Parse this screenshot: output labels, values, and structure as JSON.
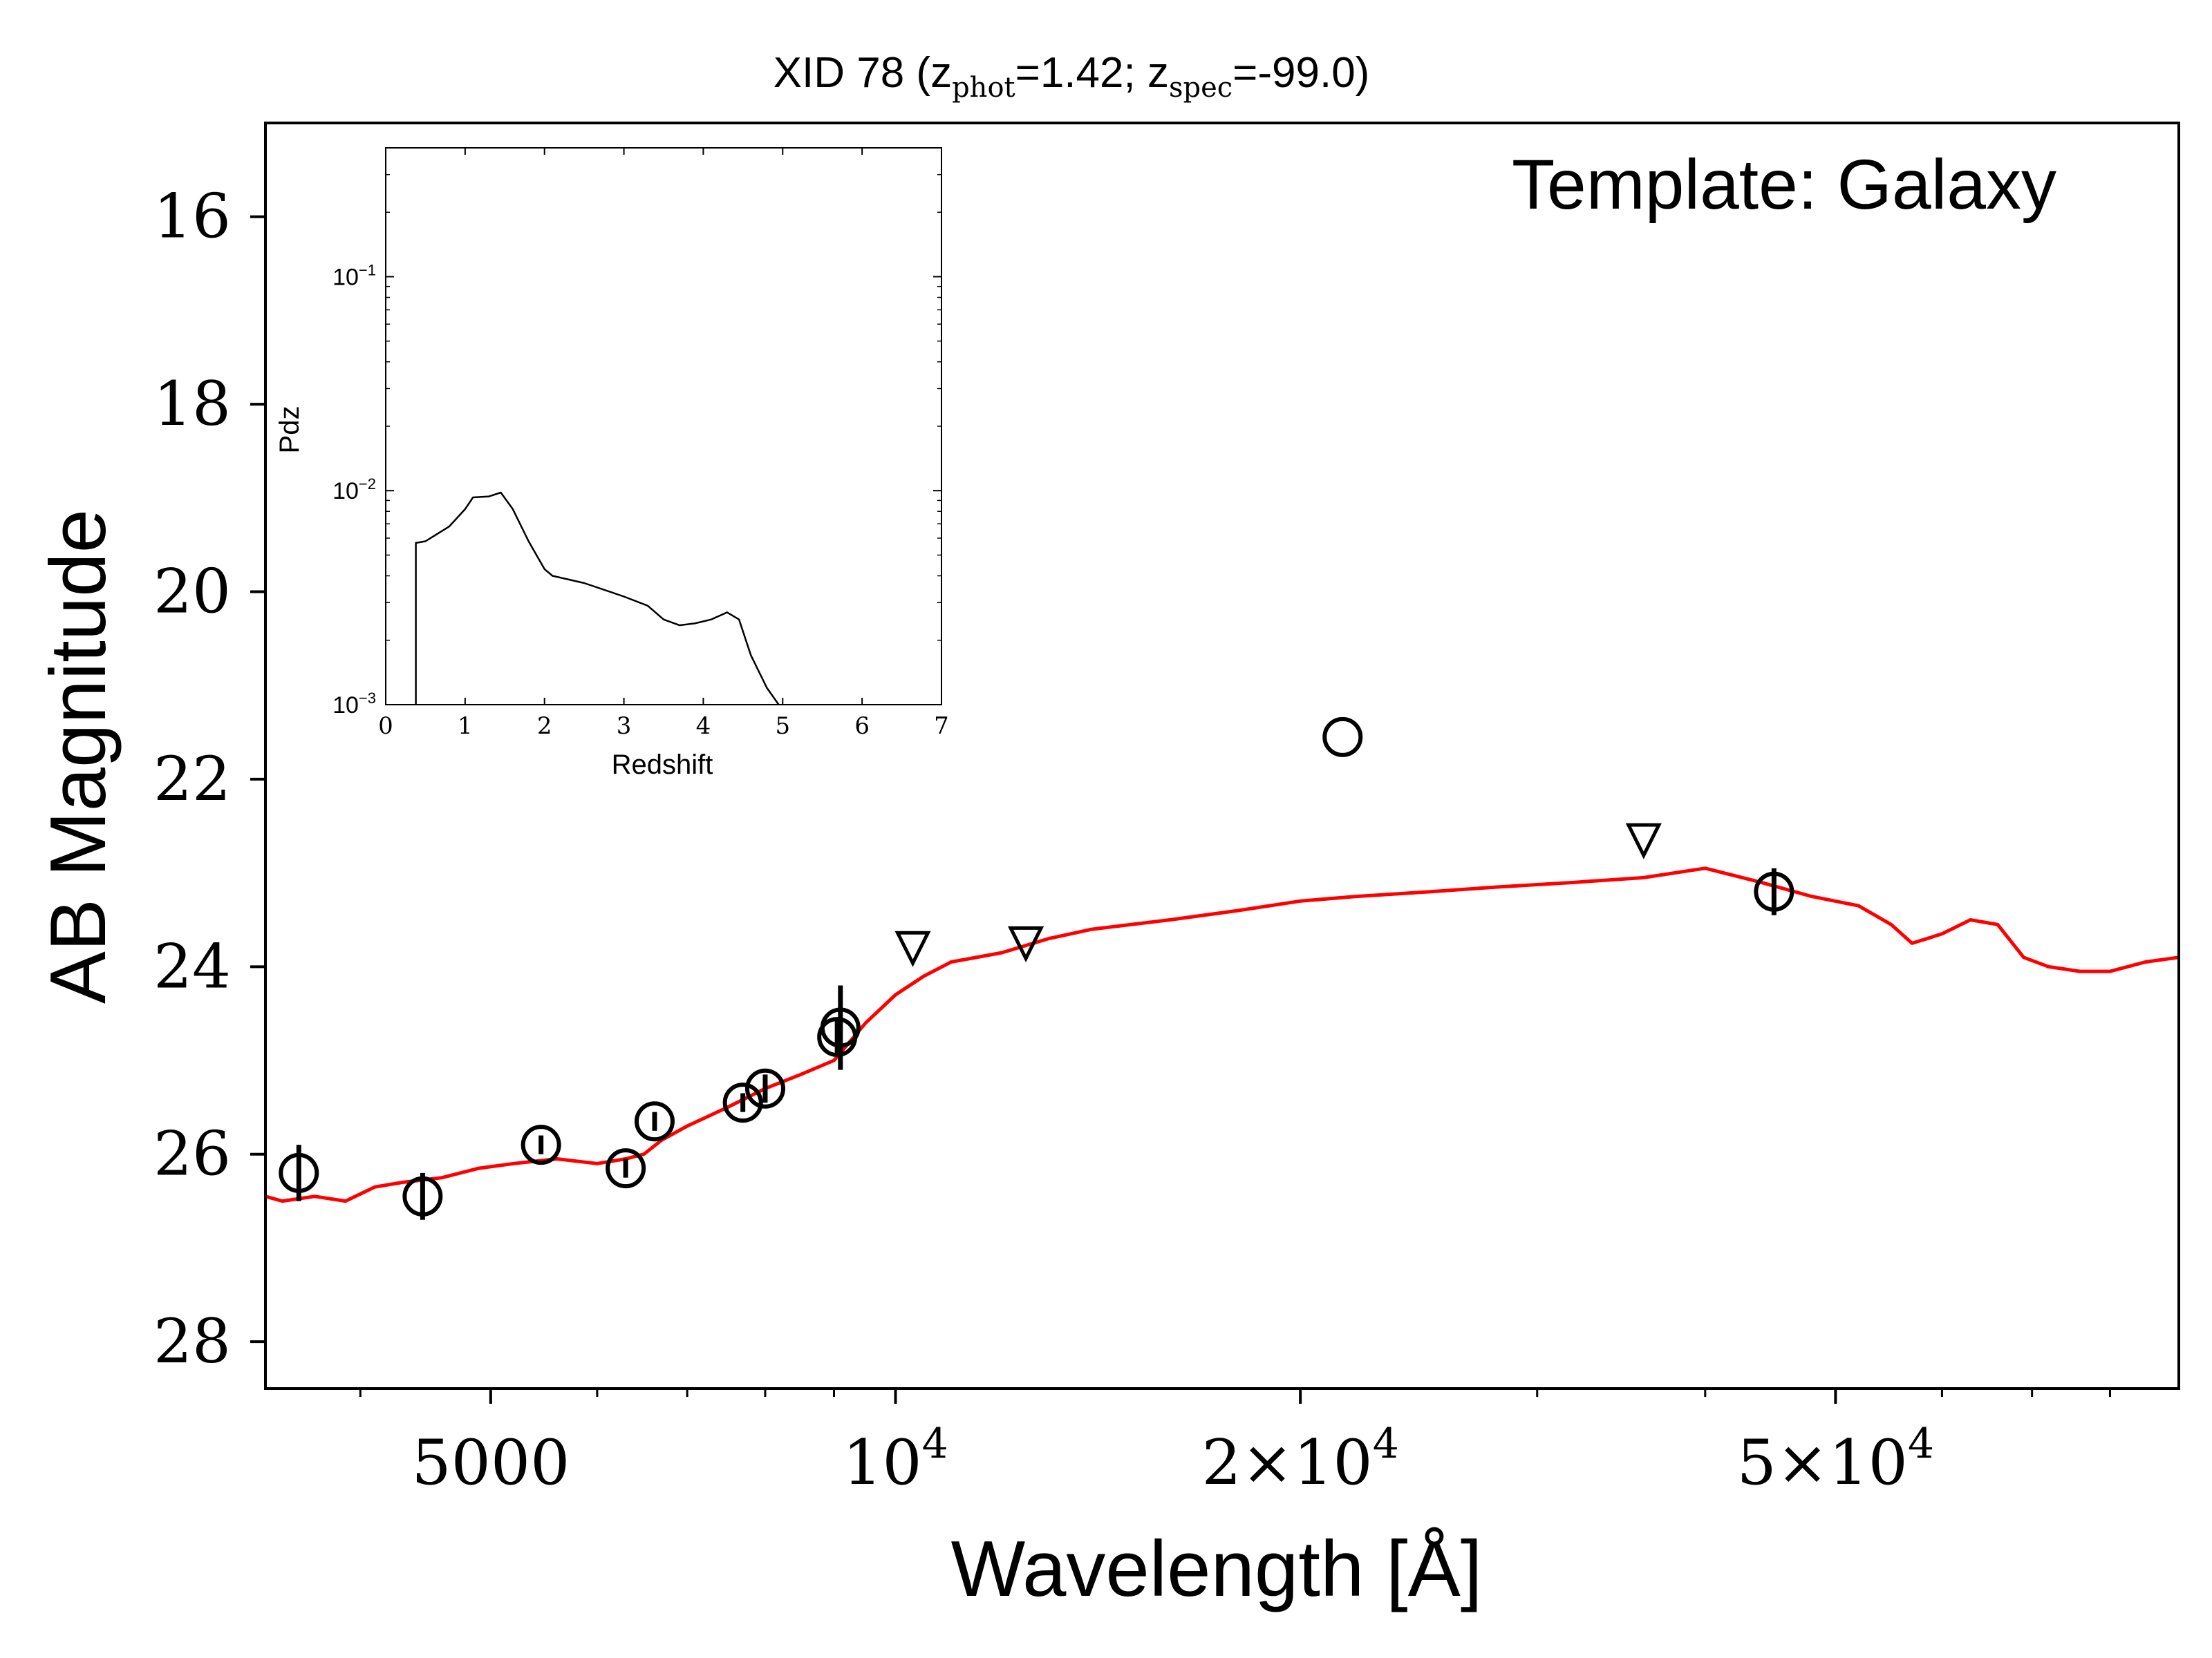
{
  "chart_data": {
    "type": "scatter",
    "title": {
      "prefix": "XID 78 (z",
      "phot_sub": "phot",
      "phot_val": "=1.42; z",
      "spec_sub": "spec",
      "spec_val": "=-99.0)"
    },
    "annotation": "Template: Galaxy",
    "xlabel": "Wavelength [Å]",
    "ylabel": "AB Magnitude",
    "xscale": "log",
    "xlim": [
      3400,
      90000
    ],
    "ylim": [
      28.5,
      15.0
    ],
    "y_inverted": true,
    "xticks": [
      {
        "value": 5000,
        "label": "5000"
      },
      {
        "value": 10000,
        "label": "10",
        "exp": "4"
      },
      {
        "value": 20000,
        "label": "2×10",
        "exp": "4"
      },
      {
        "value": 50000,
        "label": "5×10",
        "exp": "4"
      }
    ],
    "yticks": [
      16,
      18,
      20,
      22,
      24,
      26,
      28
    ],
    "colors": {
      "template": "#ff0000",
      "points": "#000000"
    },
    "detections": [
      {
        "x": 3600,
        "y": 26.2,
        "err": 0.3
      },
      {
        "x": 4450,
        "y": 26.45,
        "err": 0.25
      },
      {
        "x": 5450,
        "y": 25.9,
        "err": 0.1
      },
      {
        "x": 6300,
        "y": 26.15,
        "err": 0.1
      },
      {
        "x": 6620,
        "y": 25.65,
        "err": 0.1
      },
      {
        "x": 7700,
        "y": 25.45,
        "err": 0.1
      },
      {
        "x": 8000,
        "y": 25.3,
        "err": 0.15
      },
      {
        "x": 9050,
        "y": 24.75,
        "err": 0.2
      },
      {
        "x": 9100,
        "y": 24.65,
        "err": 0.45
      },
      {
        "x": 21500,
        "y": 21.55,
        "err": 0.0
      },
      {
        "x": 45000,
        "y": 23.2,
        "err": 0.25
      }
    ],
    "upper_limits": [
      {
        "x": 10300,
        "y": 23.8
      },
      {
        "x": 12500,
        "y": 23.75
      },
      {
        "x": 36000,
        "y": 22.65
      }
    ],
    "template_sed": [
      [
        3400,
        26.45
      ],
      [
        3500,
        26.5
      ],
      [
        3700,
        26.45
      ],
      [
        3900,
        26.5
      ],
      [
        4100,
        26.35
      ],
      [
        4300,
        26.3
      ],
      [
        4600,
        26.25
      ],
      [
        4900,
        26.15
      ],
      [
        5200,
        26.1
      ],
      [
        5600,
        26.05
      ],
      [
        6000,
        26.1
      ],
      [
        6300,
        26.05
      ],
      [
        6500,
        26.0
      ],
      [
        6700,
        25.85
      ],
      [
        7000,
        25.7
      ],
      [
        7500,
        25.5
      ],
      [
        8000,
        25.3
      ],
      [
        8500,
        25.15
      ],
      [
        9000,
        25.0
      ],
      [
        9500,
        24.6
      ],
      [
        10000,
        24.3
      ],
      [
        10500,
        24.1
      ],
      [
        11000,
        23.95
      ],
      [
        12000,
        23.85
      ],
      [
        13000,
        23.7
      ],
      [
        14000,
        23.6
      ],
      [
        16000,
        23.5
      ],
      [
        18000,
        23.4
      ],
      [
        20000,
        23.3
      ],
      [
        22000,
        23.25
      ],
      [
        25000,
        23.2
      ],
      [
        28000,
        23.15
      ],
      [
        32000,
        23.1
      ],
      [
        36000,
        23.05
      ],
      [
        40000,
        22.95
      ],
      [
        44000,
        23.1
      ],
      [
        48000,
        23.25
      ],
      [
        52000,
        23.35
      ],
      [
        55000,
        23.55
      ],
      [
        57000,
        23.75
      ],
      [
        60000,
        23.65
      ],
      [
        63000,
        23.5
      ],
      [
        66000,
        23.55
      ],
      [
        69000,
        23.9
      ],
      [
        72000,
        24.0
      ],
      [
        76000,
        24.05
      ],
      [
        80000,
        24.05
      ],
      [
        85000,
        23.95
      ],
      [
        90000,
        23.9
      ]
    ],
    "inset": {
      "type": "line",
      "xlabel": "Redshift",
      "ylabel": "Pdz",
      "xlim": [
        0,
        7
      ],
      "ylim": [
        0.001,
        0.4
      ],
      "yscale": "log",
      "xticks": [
        "0",
        "1",
        "2",
        "3",
        "4",
        "5",
        "6",
        "7"
      ],
      "yticks": [
        {
          "value": 0.1,
          "label": "10",
          "exp": "−1"
        },
        {
          "value": 0.01,
          "label": "10",
          "exp": "−2"
        },
        {
          "value": 0.001,
          "label": "10",
          "exp": "−3"
        }
      ],
      "pdz": [
        [
          0.38,
          0.001
        ],
        [
          0.38,
          0.0057
        ],
        [
          0.5,
          0.0058
        ],
        [
          0.8,
          0.0068
        ],
        [
          1.0,
          0.0082
        ],
        [
          1.1,
          0.0093
        ],
        [
          1.3,
          0.0094
        ],
        [
          1.45,
          0.0098
        ],
        [
          1.6,
          0.0082
        ],
        [
          1.8,
          0.0058
        ],
        [
          2.0,
          0.0043
        ],
        [
          2.1,
          0.004
        ],
        [
          2.5,
          0.0037
        ],
        [
          3.0,
          0.0032
        ],
        [
          3.3,
          0.0029
        ],
        [
          3.5,
          0.0025
        ],
        [
          3.7,
          0.00235
        ],
        [
          3.9,
          0.0024
        ],
        [
          4.1,
          0.0025
        ],
        [
          4.3,
          0.0027
        ],
        [
          4.45,
          0.0025
        ],
        [
          4.6,
          0.0017
        ],
        [
          4.8,
          0.0012
        ],
        [
          4.95,
          0.001
        ]
      ]
    }
  }
}
